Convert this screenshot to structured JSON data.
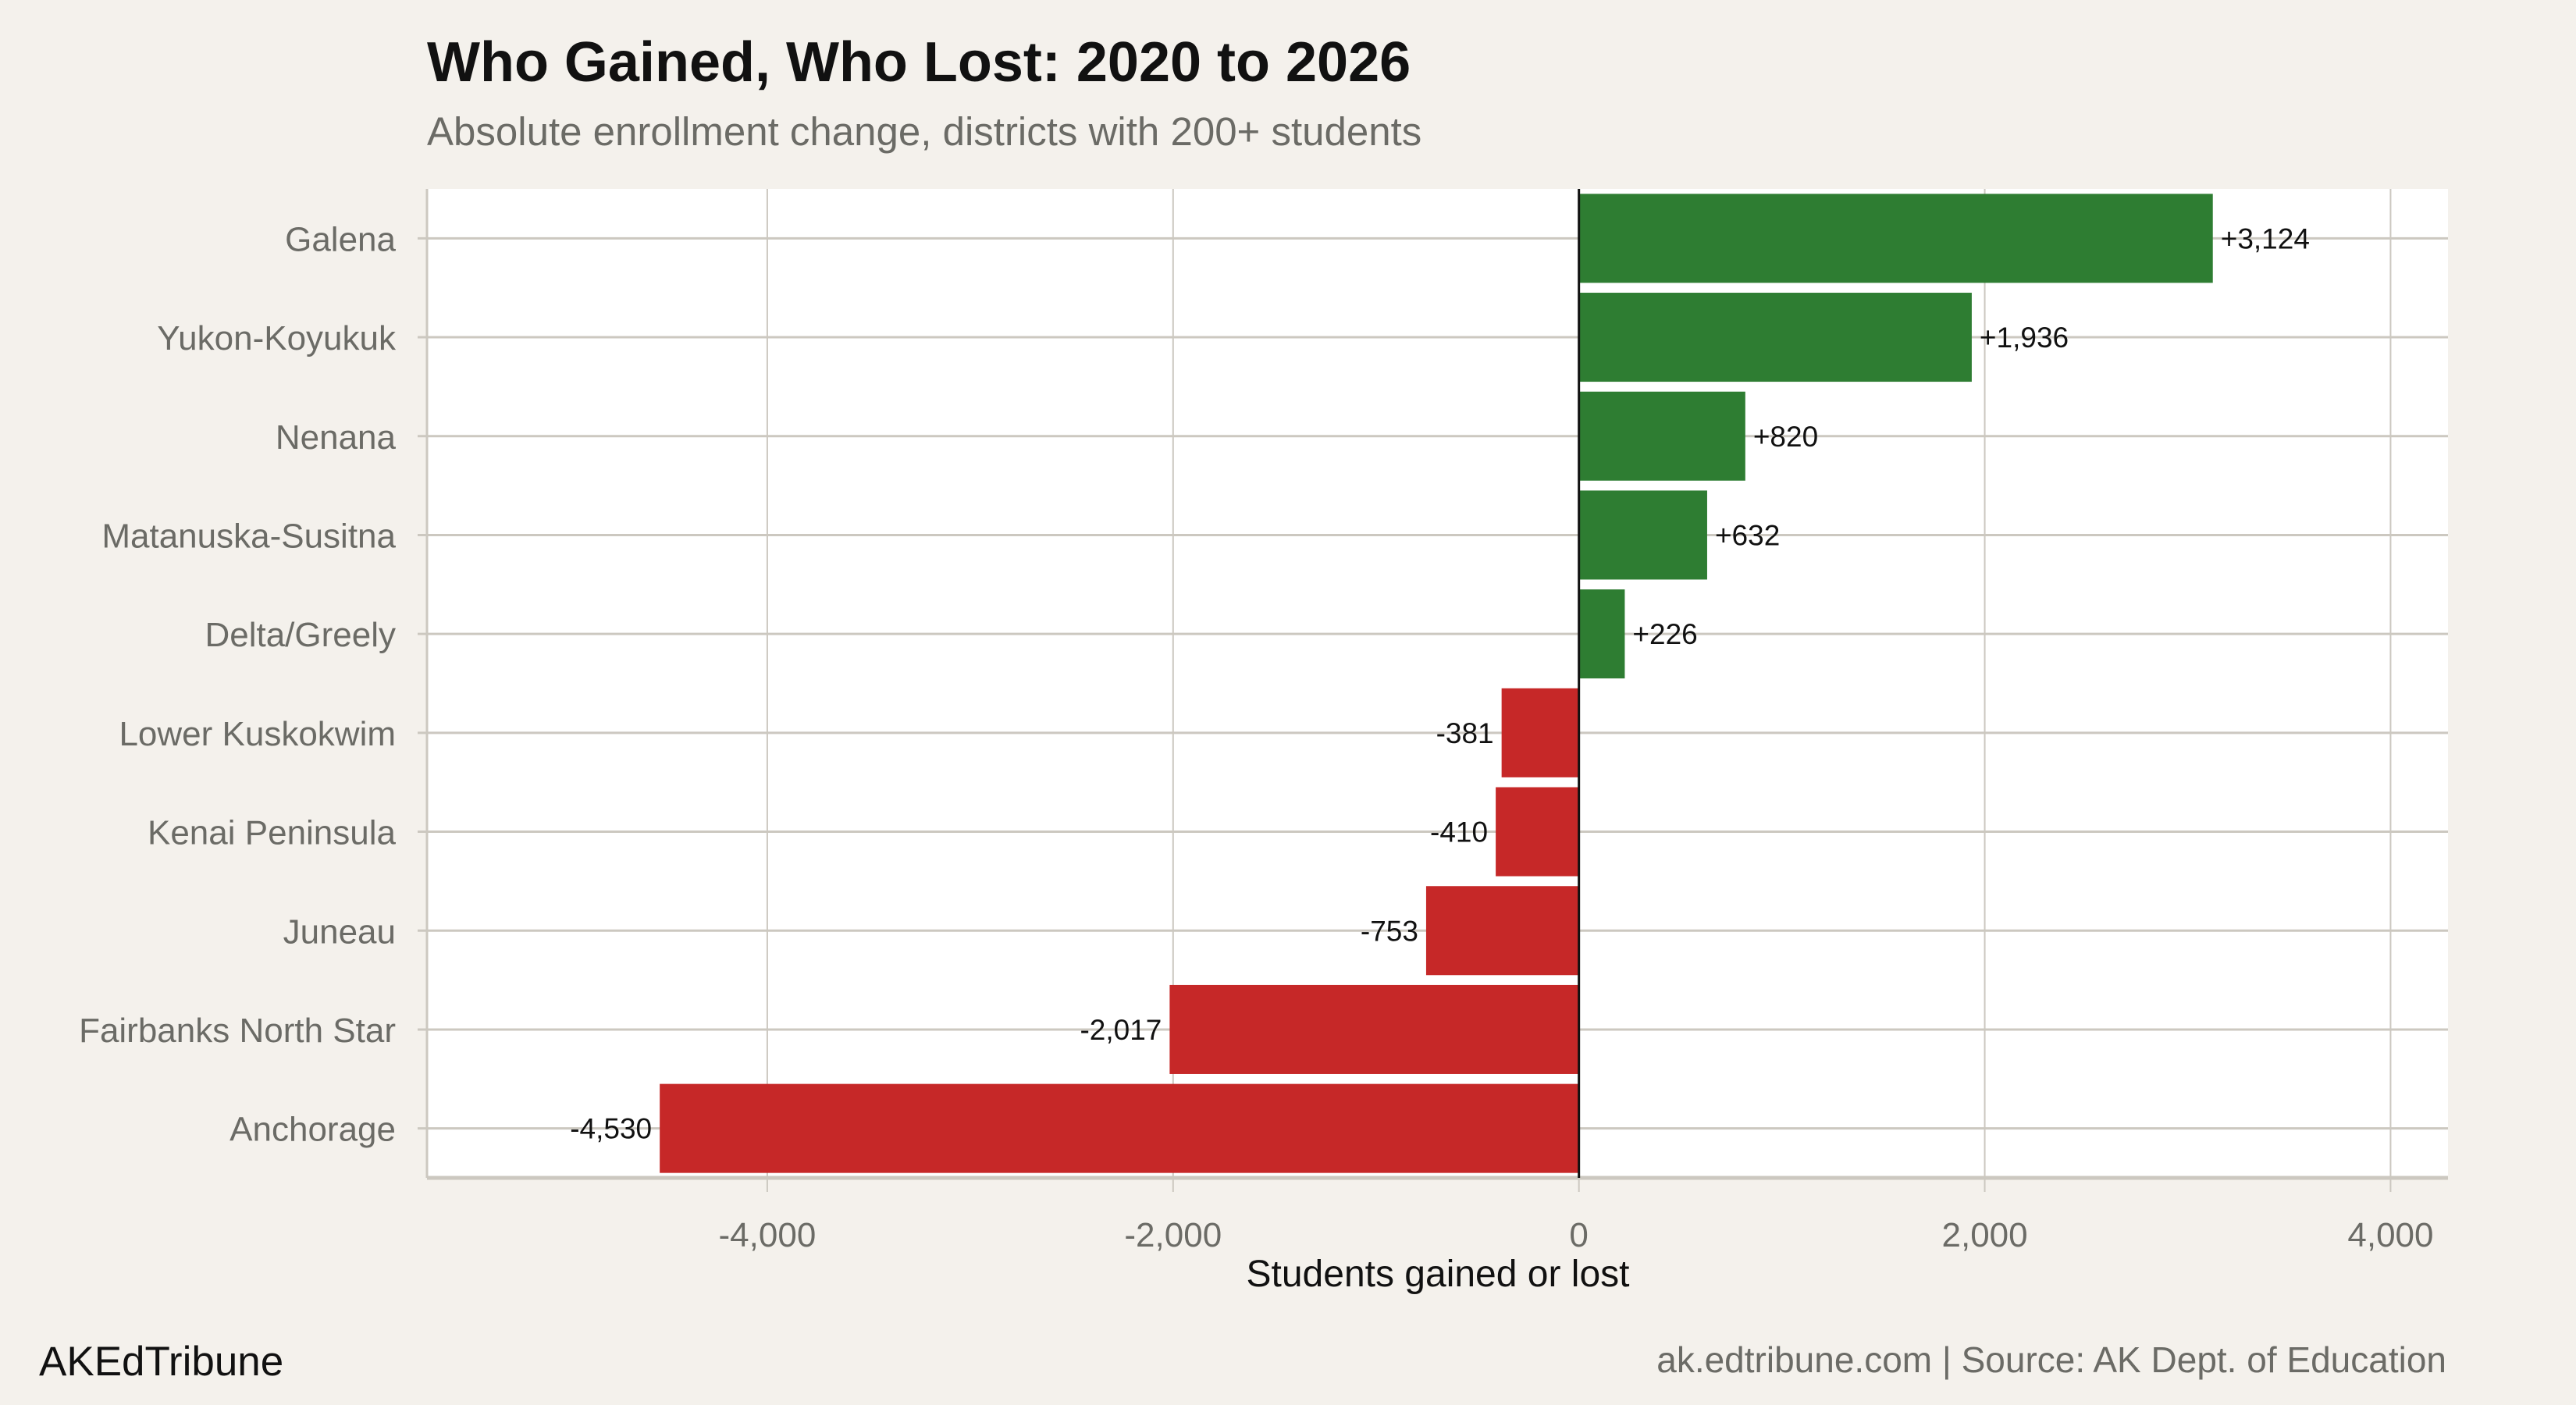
{
  "chart_data": {
    "type": "bar",
    "orientation": "horizontal",
    "title": "Who Gained, Who Lost: 2020 to 2026",
    "subtitle": "Absolute enrollment change, districts with 200+ students",
    "xlabel": "Students gained or lost",
    "ylabel": "",
    "xlim": [
      -5677,
      4283
    ],
    "xticks": [
      -4000,
      -2000,
      0,
      2000,
      4000
    ],
    "xtick_labels": [
      "-4,000",
      "-2,000",
      "0",
      "2,000",
      "4,000"
    ],
    "grid": true,
    "categories": [
      "Galena",
      "Yukon-Koyukuk",
      "Nenana",
      "Matanuska-Susitna",
      "Delta/Greely",
      "Lower Kuskokwim",
      "Kenai Peninsula",
      "Juneau",
      "Fairbanks North Star",
      "Anchorage"
    ],
    "values": [
      3124,
      1936,
      820,
      632,
      226,
      -381,
      -410,
      -753,
      -2017,
      -4530
    ],
    "data_labels": [
      "+3,124",
      "+1,936",
      "+820",
      "+632",
      "+226",
      "-381",
      "-410",
      "-753",
      "-2,017",
      "-4,530"
    ],
    "colors": {
      "gain": "#2e7d32",
      "loss": "#c62828",
      "background": "#f4f1ec",
      "panel": "#ffffff",
      "grid": "#ccc8c0"
    }
  },
  "branding": "AKEdTribune",
  "caption": "ak.edtribune.com | Source: AK Dept. of Education"
}
